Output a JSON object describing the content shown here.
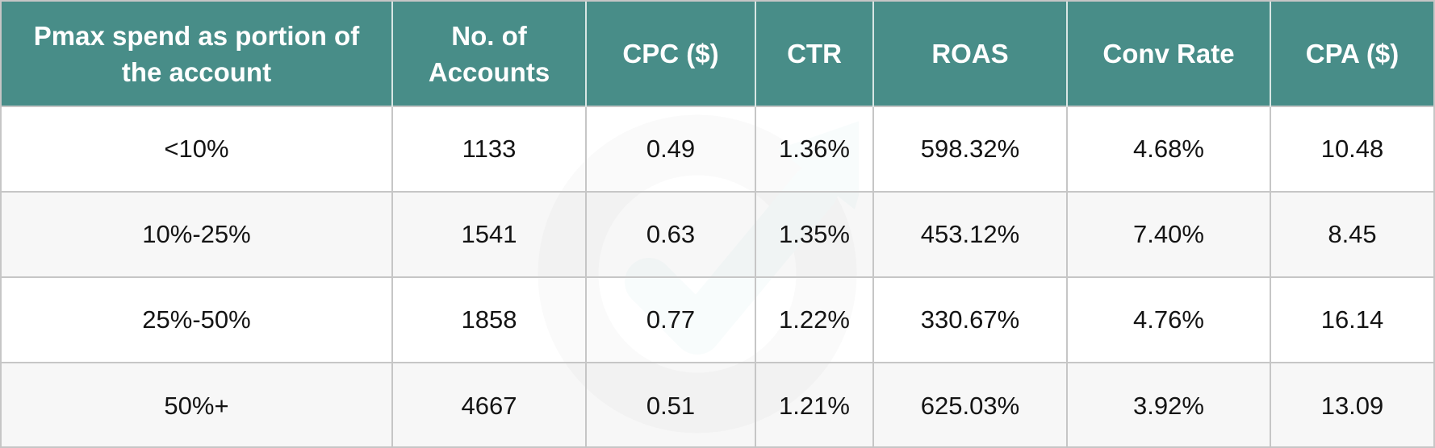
{
  "table": {
    "headers": [
      "Pmax spend as portion of the account",
      "No. of Accounts",
      "CPC ($)",
      "CTR",
      "ROAS",
      "Conv Rate",
      "CPA ($)"
    ],
    "rows": [
      [
        "<10%",
        "1133",
        "0.49",
        "1.36%",
        "598.32%",
        "4.68%",
        "10.48"
      ],
      [
        "10%-25%",
        "1541",
        "0.63",
        "1.35%",
        "453.12%",
        "7.40%",
        "8.45"
      ],
      [
        "25%-50%",
        "1858",
        "0.77",
        "1.22%",
        "330.67%",
        "4.76%",
        "16.14"
      ],
      [
        "50%+",
        "4667",
        "0.51",
        "1.21%",
        "625.03%",
        "3.92%",
        "13.09"
      ]
    ]
  },
  "colors": {
    "header_bg": "#488d88",
    "header_text": "#ffffff",
    "row_alt_bg": "#f4f4f4",
    "grid_line": "#c6c6c6"
  },
  "watermark": {
    "icon": "logo-watermark-icon"
  }
}
